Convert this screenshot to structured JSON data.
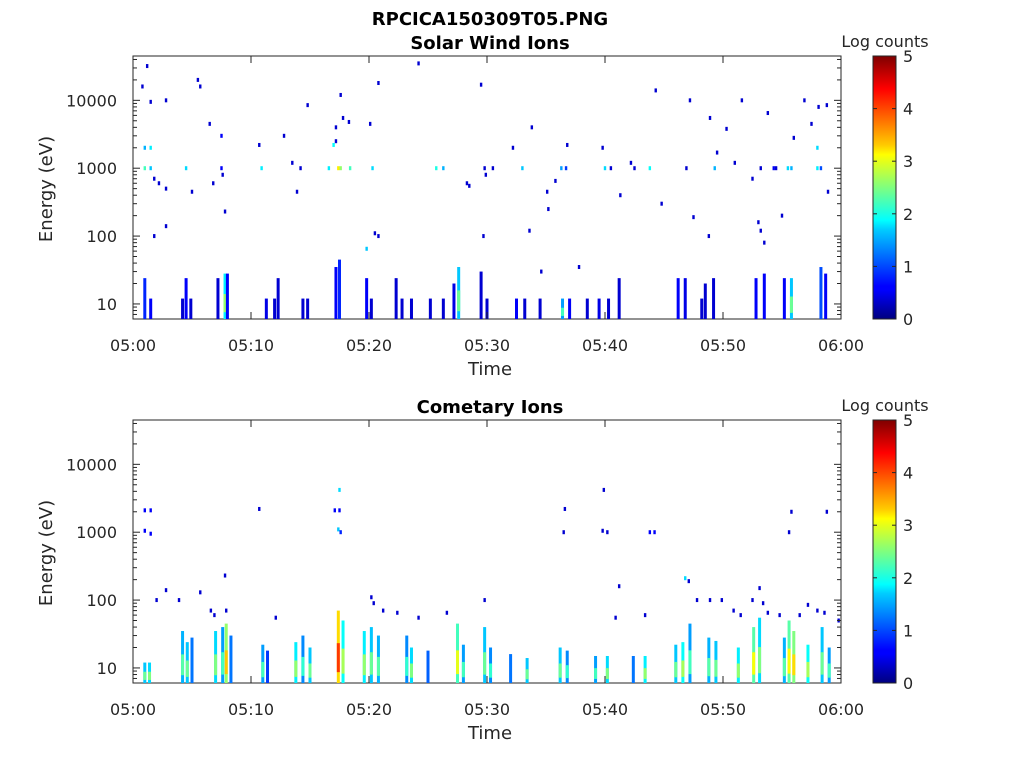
{
  "figure_title": "RPCICA150309T05.PNG",
  "chart_data": [
    {
      "type": "heatmap",
      "title": "Solar Wind Ions",
      "xlabel": "Time",
      "ylabel": "Energy (eV)",
      "yscale": "log",
      "xlim": [
        "05:00",
        "06:00"
      ],
      "ylim": [
        6,
        45000
      ],
      "xticks": [
        "05:00",
        "05:10",
        "05:20",
        "05:30",
        "05:40",
        "05:50",
        "06:00"
      ],
      "yticks": [
        10,
        100,
        1000,
        10000
      ],
      "yticklabels": [
        "10",
        "100",
        "1000",
        "10000"
      ],
      "colorbar": {
        "label": "Log counts",
        "ticks": [
          "0",
          "1",
          "2",
          "3",
          "4",
          "5"
        ],
        "range": [
          0,
          5
        ],
        "colormap": "jet"
      },
      "scatter_points": [
        [
          1.2,
          32000,
          0.4
        ],
        [
          0.8,
          16000,
          0.4
        ],
        [
          1.5,
          9500,
          0.4
        ],
        [
          2.8,
          10000,
          0.4
        ],
        [
          5.5,
          20000,
          0.4
        ],
        [
          5.7,
          16000,
          0.4
        ],
        [
          6.5,
          4500,
          0.4
        ],
        [
          7.5,
          3000,
          0.6
        ],
        [
          1.0,
          2000,
          1.5
        ],
        [
          1.5,
          2000,
          1.8
        ],
        [
          1.0,
          1000,
          2.2
        ],
        [
          1.5,
          1000,
          1.6
        ],
        [
          1.8,
          700,
          0.4
        ],
        [
          2.2,
          600,
          0.4
        ],
        [
          2.8,
          500,
          0.4
        ],
        [
          4.5,
          1000,
          1.7
        ],
        [
          5.0,
          450,
          0.4
        ],
        [
          7.5,
          1000,
          0.6
        ],
        [
          7.6,
          800,
          0.4
        ],
        [
          6.8,
          600,
          0.4
        ],
        [
          7.8,
          230,
          0.4
        ],
        [
          1.8,
          100,
          0.4
        ],
        [
          2.8,
          140,
          0.4
        ],
        [
          10.7,
          2200,
          0.4
        ],
        [
          10.9,
          1000,
          1.8
        ],
        [
          12.8,
          3000,
          0.4
        ],
        [
          13.5,
          1200,
          0.4
        ],
        [
          14.2,
          1000,
          0.4
        ],
        [
          13.9,
          450,
          0.4
        ],
        [
          14.8,
          8500,
          0.4
        ],
        [
          16.6,
          1000,
          1.8
        ],
        [
          17.0,
          2200,
          1.9
        ],
        [
          17.2,
          2500,
          0.4
        ],
        [
          17.4,
          1000,
          3.2
        ],
        [
          17.6,
          1000,
          2.6
        ],
        [
          17.2,
          4000,
          0.4
        ],
        [
          17.8,
          5500,
          0.4
        ],
        [
          18.3,
          4800,
          0.4
        ],
        [
          18.4,
          1000,
          2.2
        ],
        [
          17.6,
          12000,
          0.4
        ],
        [
          20.3,
          1000,
          1.7
        ],
        [
          20.5,
          110,
          0.4
        ],
        [
          20.8,
          100,
          0.4
        ],
        [
          20.8,
          18000,
          0.4
        ],
        [
          19.8,
          65,
          1.6
        ],
        [
          24.2,
          35000,
          0.4
        ],
        [
          25.7,
          1000,
          2.0
        ],
        [
          26.3,
          1000,
          1.5
        ],
        [
          29.5,
          17000,
          0.4
        ],
        [
          29.8,
          1000,
          0.4
        ],
        [
          29.9,
          800,
          0.4
        ],
        [
          29.7,
          100,
          0.4
        ],
        [
          28.3,
          600,
          0.4
        ],
        [
          28.5,
          550,
          0.4
        ],
        [
          30.5,
          1000,
          0.4
        ],
        [
          32.2,
          2000,
          0.4
        ],
        [
          33.0,
          1000,
          1.6
        ],
        [
          33.8,
          4000,
          0.4
        ],
        [
          33.6,
          120,
          0.4
        ],
        [
          34.6,
          30,
          0.4
        ],
        [
          35.1,
          450,
          0.4
        ],
        [
          35.2,
          250,
          0.4
        ],
        [
          35.8,
          650,
          0.4
        ],
        [
          36.3,
          1000,
          1.4
        ],
        [
          36.7,
          1000,
          0.9
        ],
        [
          36.8,
          2200,
          0.4
        ],
        [
          37.8,
          35,
          0.4
        ],
        [
          39.8,
          2000,
          0.4
        ],
        [
          40.0,
          1000,
          1.7
        ],
        [
          40.5,
          1000,
          0.4
        ],
        [
          41.3,
          400,
          0.4
        ],
        [
          42.2,
          1200,
          0.4
        ],
        [
          42.5,
          1000,
          0.4
        ],
        [
          43.8,
          1000,
          1.9
        ],
        [
          44.3,
          14000,
          0.4
        ],
        [
          44.8,
          300,
          0.4
        ],
        [
          46.9,
          1000,
          0.4
        ],
        [
          47.2,
          10000,
          0.4
        ],
        [
          47.5,
          190,
          0.4
        ],
        [
          48.9,
          5500,
          0.4
        ],
        [
          48.8,
          100,
          0.4
        ],
        [
          49.5,
          1700,
          0.4
        ],
        [
          49.3,
          1000,
          1.5
        ],
        [
          50.3,
          3800,
          0.4
        ],
        [
          51.0,
          1200,
          0.4
        ],
        [
          51.6,
          10000,
          0.4
        ],
        [
          52.5,
          700,
          0.4
        ],
        [
          53.0,
          160,
          0.4
        ],
        [
          53.2,
          120,
          0.4
        ],
        [
          53.5,
          80,
          0.4
        ],
        [
          53.2,
          1000,
          0.4
        ],
        [
          53.8,
          6500,
          0.4
        ],
        [
          54.3,
          1000,
          0.6
        ],
        [
          55.0,
          200,
          0.4
        ],
        [
          55.5,
          1000,
          1.7
        ],
        [
          55.8,
          1000,
          1.5
        ],
        [
          56.0,
          2800,
          0.4
        ],
        [
          56.9,
          10000,
          0.4
        ],
        [
          58.1,
          8000,
          0.4
        ],
        [
          57.5,
          4500,
          0.4
        ],
        [
          58.0,
          2000,
          1.7
        ],
        [
          58.0,
          1000,
          1.8
        ],
        [
          58.3,
          1000,
          1.0
        ],
        [
          58.8,
          8500,
          0.4
        ],
        [
          58.9,
          450,
          0.4
        ],
        [
          54.5,
          1000,
          0.4
        ],
        [
          20.1,
          4500,
          0.4
        ]
      ],
      "low_energy_columns": [
        [
          1.0,
          24,
          0.8
        ],
        [
          1.5,
          12,
          0.6
        ],
        [
          4.2,
          12,
          0.4
        ],
        [
          4.5,
          24,
          0.6
        ],
        [
          4.9,
          12,
          0.4
        ],
        [
          7.2,
          24,
          0.4
        ],
        [
          7.8,
          28,
          1.8
        ],
        [
          8.0,
          28,
          0.6
        ],
        [
          11.3,
          12,
          0.5
        ],
        [
          12.0,
          12,
          0.4
        ],
        [
          12.3,
          24,
          0.4
        ],
        [
          14.4,
          12,
          0.4
        ],
        [
          14.8,
          12,
          0.4
        ],
        [
          17.2,
          35,
          0.6
        ],
        [
          17.5,
          45,
          0.8
        ],
        [
          19.8,
          24,
          0.6
        ],
        [
          20.2,
          12,
          0.4
        ],
        [
          22.3,
          24,
          0.4
        ],
        [
          22.8,
          12,
          0.4
        ],
        [
          23.6,
          12,
          0.4
        ],
        [
          25.2,
          12,
          0.4
        ],
        [
          26.3,
          12,
          0.4
        ],
        [
          27.2,
          20,
          0.5
        ],
        [
          27.6,
          35,
          1.6
        ],
        [
          29.5,
          30,
          0.4
        ],
        [
          30.0,
          12,
          0.4
        ],
        [
          32.5,
          12,
          0.6
        ],
        [
          33.2,
          12,
          0.4
        ],
        [
          34.5,
          12,
          0.4
        ],
        [
          36.4,
          12,
          1.4
        ],
        [
          37.0,
          12,
          0.6
        ],
        [
          38.5,
          12,
          0.4
        ],
        [
          39.5,
          12,
          0.5
        ],
        [
          40.3,
          12,
          0.4
        ],
        [
          41.2,
          24,
          0.4
        ],
        [
          46.2,
          24,
          0.6
        ],
        [
          46.8,
          24,
          0.5
        ],
        [
          48.2,
          12,
          0.4
        ],
        [
          48.5,
          20,
          0.4
        ],
        [
          49.2,
          24,
          0.4
        ],
        [
          52.8,
          24,
          0.6
        ],
        [
          53.5,
          28,
          0.6
        ],
        [
          55.2,
          24,
          0.6
        ],
        [
          55.8,
          24,
          1.6
        ],
        [
          58.3,
          35,
          1.0
        ],
        [
          58.7,
          28,
          0.6
        ]
      ]
    },
    {
      "type": "heatmap",
      "title": "Cometary Ions",
      "xlabel": "Time",
      "ylabel": "Energy (eV)",
      "yscale": "log",
      "xlim": [
        "05:00",
        "06:00"
      ],
      "ylim": [
        6,
        45000
      ],
      "xticks": [
        "05:00",
        "05:10",
        "05:20",
        "05:30",
        "05:40",
        "05:50",
        "06:00"
      ],
      "yticks": [
        10,
        100,
        1000,
        10000
      ],
      "yticklabels": [
        "10",
        "100",
        "1000",
        "10000"
      ],
      "colorbar": {
        "label": "Log counts",
        "ticks": [
          "0",
          "1",
          "2",
          "3",
          "4",
          "5"
        ],
        "range": [
          0,
          5
        ],
        "colormap": "jet"
      },
      "scatter_points": [
        [
          1.0,
          2100,
          0.6
        ],
        [
          1.5,
          2100,
          0.6
        ],
        [
          1.0,
          1050,
          0.6
        ],
        [
          1.5,
          950,
          0.6
        ],
        [
          10.7,
          2200,
          0.4
        ],
        [
          17.1,
          2100,
          0.6
        ],
        [
          17.5,
          2100,
          0.6
        ],
        [
          17.5,
          4200,
          1.7
        ],
        [
          17.4,
          1100,
          1.6
        ],
        [
          17.6,
          1000,
          0.8
        ],
        [
          36.6,
          2200,
          0.4
        ],
        [
          36.5,
          1000,
          0.4
        ],
        [
          39.8,
          1050,
          0.4
        ],
        [
          40.2,
          1000,
          0.4
        ],
        [
          39.9,
          4200,
          0.4
        ],
        [
          43.8,
          1000,
          0.6
        ],
        [
          44.2,
          1000,
          0.6
        ],
        [
          55.8,
          2000,
          0.4
        ],
        [
          55.6,
          1000,
          0.4
        ],
        [
          58.8,
          2000,
          0.4
        ],
        [
          2.0,
          100,
          0.4
        ],
        [
          2.8,
          140,
          0.4
        ],
        [
          3.9,
          100,
          0.4
        ],
        [
          5.7,
          130,
          0.4
        ],
        [
          6.6,
          70,
          0.4
        ],
        [
          6.9,
          60,
          0.4
        ],
        [
          7.8,
          230,
          0.4
        ],
        [
          7.9,
          70,
          0.4
        ],
        [
          12.1,
          55,
          0.4
        ],
        [
          20.2,
          110,
          0.4
        ],
        [
          20.4,
          90,
          0.4
        ],
        [
          21.2,
          70,
          0.4
        ],
        [
          22.4,
          65,
          0.4
        ],
        [
          24.2,
          55,
          0.4
        ],
        [
          26.6,
          65,
          0.4
        ],
        [
          29.8,
          100,
          0.4
        ],
        [
          41.2,
          160,
          0.4
        ],
        [
          40.9,
          55,
          0.4
        ],
        [
          43.4,
          60,
          0.4
        ],
        [
          46.8,
          210,
          1.7
        ],
        [
          47.1,
          190,
          0.4
        ],
        [
          47.8,
          100,
          0.4
        ],
        [
          48.9,
          100,
          0.4
        ],
        [
          49.9,
          100,
          0.4
        ],
        [
          50.9,
          70,
          0.4
        ],
        [
          51.5,
          60,
          0.4
        ],
        [
          52.5,
          100,
          0.4
        ],
        [
          53.1,
          150,
          0.4
        ],
        [
          53.4,
          90,
          0.4
        ],
        [
          53.8,
          65,
          0.4
        ],
        [
          54.8,
          60,
          0.4
        ],
        [
          56.5,
          60,
          0.4
        ],
        [
          57.2,
          85,
          0.4
        ],
        [
          58.0,
          70,
          0.4
        ],
        [
          58.6,
          65,
          0.4
        ],
        [
          59.8,
          50,
          0.4
        ]
      ],
      "low_energy_columns": [
        [
          1.0,
          12,
          1.6
        ],
        [
          1.4,
          12,
          1.7
        ],
        [
          4.2,
          35,
          1.5
        ],
        [
          4.6,
          24,
          1.6
        ],
        [
          5.0,
          28,
          1.2
        ],
        [
          7.0,
          35,
          1.7
        ],
        [
          7.6,
          40,
          1.4
        ],
        [
          7.9,
          45,
          2.6
        ],
        [
          8.3,
          30,
          1.2
        ],
        [
          11.0,
          22,
          1.4
        ],
        [
          11.4,
          18,
          0.9
        ],
        [
          13.8,
          24,
          1.8
        ],
        [
          14.4,
          30,
          1.3
        ],
        [
          15.0,
          20,
          1.6
        ],
        [
          17.4,
          70,
          3.3
        ],
        [
          17.8,
          50,
          1.9
        ],
        [
          19.6,
          35,
          1.8
        ],
        [
          20.2,
          40,
          1.6
        ],
        [
          20.8,
          30,
          1.5
        ],
        [
          23.2,
          30,
          1.3
        ],
        [
          23.6,
          20,
          1.7
        ],
        [
          25.0,
          18,
          1.1
        ],
        [
          27.5,
          45,
          2.2
        ],
        [
          28.0,
          22,
          1.4
        ],
        [
          29.8,
          40,
          1.6
        ],
        [
          30.3,
          20,
          1.3
        ],
        [
          32.0,
          16,
          1.2
        ],
        [
          33.4,
          14,
          1.6
        ],
        [
          36.2,
          20,
          1.6
        ],
        [
          36.8,
          18,
          1.3
        ],
        [
          39.2,
          15,
          1.4
        ],
        [
          40.2,
          15,
          1.7
        ],
        [
          42.4,
          15,
          1.2
        ],
        [
          43.4,
          15,
          1.8
        ],
        [
          46.0,
          22,
          1.6
        ],
        [
          46.6,
          24,
          1.9
        ],
        [
          47.2,
          45,
          1.4
        ],
        [
          48.8,
          28,
          1.5
        ],
        [
          49.4,
          25,
          1.6
        ],
        [
          51.3,
          20,
          1.8
        ],
        [
          52.6,
          40,
          2.3
        ],
        [
          53.1,
          55,
          1.7
        ],
        [
          55.2,
          28,
          1.5
        ],
        [
          55.6,
          50,
          2.3
        ],
        [
          56.0,
          35,
          2.5
        ],
        [
          57.2,
          22,
          1.9
        ],
        [
          58.4,
          40,
          1.6
        ],
        [
          59.0,
          20,
          1.4
        ]
      ]
    }
  ]
}
